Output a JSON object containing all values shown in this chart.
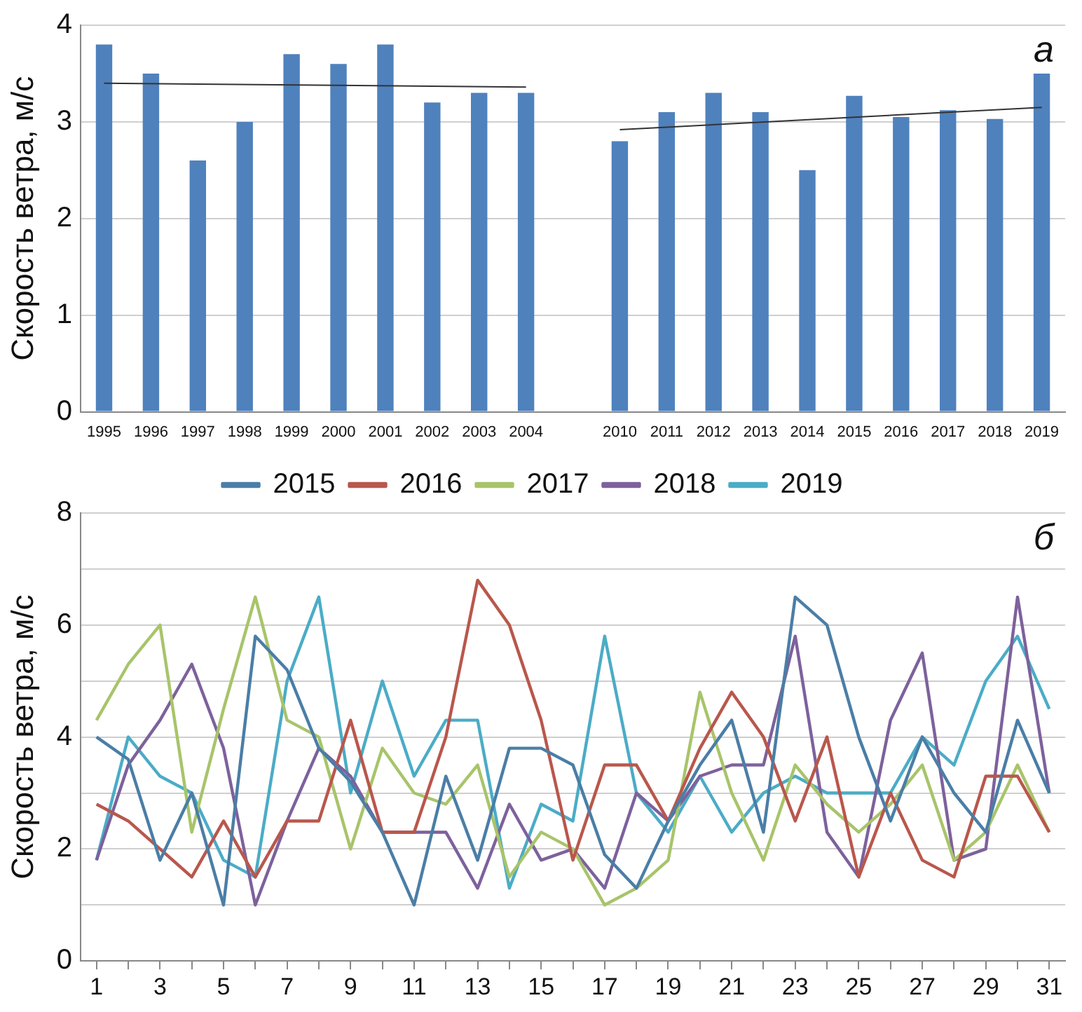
{
  "chart_data": [
    {
      "type": "bar",
      "ylabel": "Скорость ветра, м/с",
      "annotations": [
        "а"
      ],
      "categories": [
        "1995",
        "1996",
        "1997",
        "1998",
        "1999",
        "2000",
        "2001",
        "2002",
        "2003",
        "2004",
        null,
        "2010",
        "2011",
        "2012",
        "2013",
        "2014",
        "2015",
        "2016",
        "2017",
        "2018",
        "2019"
      ],
      "ylim": [
        0,
        4
      ],
      "yticks": [
        0,
        1,
        2,
        3,
        4
      ],
      "grid": "y",
      "legend": false,
      "series": [
        {
          "type": "bar",
          "color": "#4f81bd",
          "values": [
            3.8,
            3.5,
            2.6,
            3.0,
            3.7,
            3.6,
            3.8,
            3.2,
            3.3,
            3.3,
            null,
            2.8,
            3.1,
            3.3,
            3.1,
            2.5,
            3.27,
            3.05,
            3.12,
            3.03,
            3.5
          ]
        },
        {
          "type": "line",
          "color": "#333333",
          "values": [
            3.4,
            null,
            null,
            null,
            null,
            null,
            null,
            null,
            null,
            3.36,
            null,
            null,
            null,
            null,
            null,
            null,
            null,
            null,
            null,
            null,
            null
          ]
        },
        {
          "type": "line",
          "color": "#333333",
          "values": [
            null,
            null,
            null,
            null,
            null,
            null,
            null,
            null,
            null,
            null,
            null,
            2.92,
            null,
            null,
            null,
            null,
            null,
            null,
            null,
            null,
            3.15
          ]
        }
      ]
    },
    {
      "type": "line",
      "ylabel": "Скорость ветра, м/с",
      "annotations": [
        "б"
      ],
      "x": [
        1,
        2,
        3,
        4,
        5,
        6,
        7,
        8,
        9,
        10,
        11,
        12,
        13,
        14,
        15,
        16,
        17,
        18,
        19,
        20,
        21,
        22,
        23,
        24,
        25,
        26,
        27,
        28,
        29,
        30,
        31
      ],
      "xlim": [
        0.5,
        31.5
      ],
      "xticks": [
        1,
        {
          "value": 2,
          "label": null
        },
        3,
        {
          "value": 4,
          "label": null
        },
        5,
        {
          "value": 6,
          "label": null
        },
        7,
        {
          "value": 8,
          "label": null
        },
        9,
        {
          "value": 10,
          "label": null
        },
        11,
        {
          "value": 12,
          "label": null
        },
        13,
        {
          "value": 14,
          "label": null
        },
        15,
        {
          "value": 16,
          "label": null
        },
        17,
        {
          "value": 18,
          "label": null
        },
        19,
        {
          "value": 20,
          "label": null
        },
        21,
        {
          "value": 22,
          "label": null
        },
        23,
        {
          "value": 24,
          "label": null
        },
        25,
        {
          "value": 26,
          "label": null
        },
        27,
        {
          "value": 28,
          "label": null
        },
        29,
        {
          "value": 30,
          "label": null
        },
        31
      ],
      "ylim": [
        0,
        8
      ],
      "yticks": [
        0,
        {
          "value": 1,
          "label": null
        },
        2,
        {
          "value": 3,
          "label": null
        },
        4,
        {
          "value": 5,
          "label": null
        },
        6,
        {
          "value": 7,
          "label": null
        },
        8
      ],
      "grid": "y",
      "legend": "top",
      "marker": "none",
      "series": [
        {
          "name": "2015",
          "color": "#4a7ea6",
          "values": [
            4.0,
            3.6,
            1.8,
            3.0,
            1.0,
            5.8,
            5.2,
            3.8,
            3.2,
            2.3,
            1.0,
            3.3,
            1.8,
            3.8,
            3.8,
            3.5,
            1.9,
            1.3,
            2.5,
            3.5,
            4.3,
            2.3,
            6.5,
            6.0,
            4.0,
            2.5,
            4.0,
            3.0,
            2.3,
            4.3,
            3.0
          ]
        },
        {
          "name": "2016",
          "color": "#b9574c",
          "values": [
            2.8,
            2.5,
            2.0,
            1.5,
            2.5,
            1.5,
            2.5,
            2.5,
            4.3,
            2.3,
            2.3,
            4.0,
            6.8,
            6.0,
            4.3,
            1.8,
            3.5,
            3.5,
            2.5,
            3.8,
            4.8,
            4.0,
            2.5,
            4.0,
            1.5,
            3.0,
            1.8,
            1.5,
            3.3,
            3.3,
            2.3
          ]
        },
        {
          "name": "2017",
          "color": "#a8c46a",
          "values": [
            4.3,
            5.3,
            6.0,
            2.3,
            4.5,
            6.5,
            4.3,
            4.0,
            2.0,
            3.8,
            3.0,
            2.8,
            3.5,
            1.5,
            2.3,
            2.0,
            1.0,
            1.3,
            1.8,
            4.8,
            3.0,
            1.8,
            3.5,
            2.8,
            2.3,
            2.8,
            3.5,
            1.8,
            2.3,
            3.5,
            2.3
          ]
        },
        {
          "name": "2018",
          "color": "#7d619c",
          "values": [
            1.8,
            3.5,
            4.3,
            5.3,
            3.8,
            1.0,
            2.5,
            3.8,
            3.3,
            2.3,
            2.3,
            2.3,
            1.3,
            2.8,
            1.8,
            2.0,
            1.3,
            3.0,
            2.5,
            3.3,
            3.5,
            3.5,
            5.8,
            2.3,
            1.5,
            4.3,
            5.5,
            1.8,
            2.0,
            6.5,
            3.0
          ]
        },
        {
          "name": "2019",
          "color": "#4bacc6",
          "values": [
            1.8,
            4.0,
            3.3,
            3.0,
            1.8,
            1.5,
            5.0,
            6.5,
            3.0,
            5.0,
            3.3,
            4.3,
            4.3,
            1.3,
            2.8,
            2.5,
            5.8,
            3.0,
            2.3,
            3.3,
            2.3,
            3.0,
            3.3,
            3.0,
            3.0,
            3.0,
            4.0,
            3.5,
            5.0,
            5.8,
            4.5
          ]
        }
      ]
    }
  ]
}
